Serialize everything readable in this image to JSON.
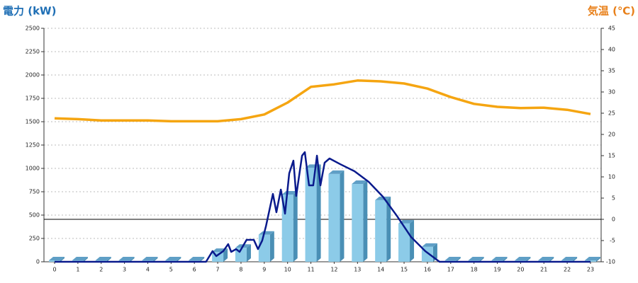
{
  "chart_data": {
    "type": "bar-line",
    "title_left": "電力 (kW)",
    "title_right": "気温 (℃)",
    "title_left_color": "#1f6fb5",
    "title_right_color": "#e8801a",
    "categories": [
      "0",
      "1",
      "2",
      "3",
      "4",
      "5",
      "6",
      "7",
      "8",
      "9",
      "10",
      "11",
      "12",
      "13",
      "14",
      "15",
      "16",
      "17",
      "18",
      "19",
      "20",
      "21",
      "22",
      "23"
    ],
    "ylim": [
      0,
      2500
    ],
    "yticks": [
      0,
      250,
      500,
      750,
      1000,
      1250,
      1500,
      1750,
      2000,
      2250,
      2500
    ],
    "y2lim": [
      -10,
      45
    ],
    "y2ticks": [
      -10,
      -5,
      0,
      5,
      10,
      15,
      20,
      25,
      30,
      35,
      40,
      45
    ],
    "grid": true,
    "reference_line": {
      "axis": "y2",
      "value": 0,
      "color": "#000000"
    },
    "bars": {
      "color": "#8ccbe8",
      "side_color": "#4a8fb5",
      "top_color": "#5f9fc6",
      "values": [
        15,
        15,
        15,
        15,
        15,
        15,
        15,
        105,
        150,
        290,
        720,
        1005,
        940,
        833,
        660,
        410,
        160,
        15,
        15,
        15,
        15,
        15,
        15,
        15
      ]
    },
    "power_line": {
      "color": "#0a1a8c",
      "x": [
        0,
        6.5,
        6.78,
        6.94,
        7.24,
        7.45,
        7.58,
        7.79,
        7.94,
        8.24,
        8.55,
        8.73,
        8.91,
        9.07,
        9.37,
        9.52,
        9.71,
        9.89,
        10.07,
        10.25,
        10.37,
        10.62,
        10.74,
        10.92,
        11.1,
        11.26,
        11.41,
        11.59,
        11.8,
        12.26,
        12.87,
        13.48,
        14.09,
        14.69,
        15.3,
        15.91,
        16.52,
        23
      ],
      "values": [
        0,
        0,
        114,
        61,
        114,
        189,
        106,
        136,
        106,
        235,
        235,
        136,
        227,
        379,
        727,
        530,
        773,
        515,
        947,
        1083,
        705,
        1136,
        1174,
        818,
        818,
        1136,
        818,
        1061,
        1106,
        1045,
        970,
        856,
        697,
        492,
        265,
        114,
        0,
        0
      ]
    },
    "temperature_line": {
      "color": "#f5a511",
      "axis": "y2",
      "x": [
        0,
        1,
        2,
        3,
        4,
        5,
        6,
        7,
        8,
        9,
        10,
        11,
        12,
        13,
        14,
        15,
        16,
        17,
        18,
        19,
        20,
        21,
        22,
        23
      ],
      "values": [
        23.8,
        23.6,
        23.3,
        23.3,
        23.3,
        23.1,
        23.1,
        23.1,
        23.6,
        24.7,
        27.5,
        31.2,
        31.8,
        32.7,
        32.5,
        32.0,
        30.8,
        28.8,
        27.2,
        26.5,
        26.2,
        26.3,
        25.8,
        24.8
      ]
    }
  }
}
